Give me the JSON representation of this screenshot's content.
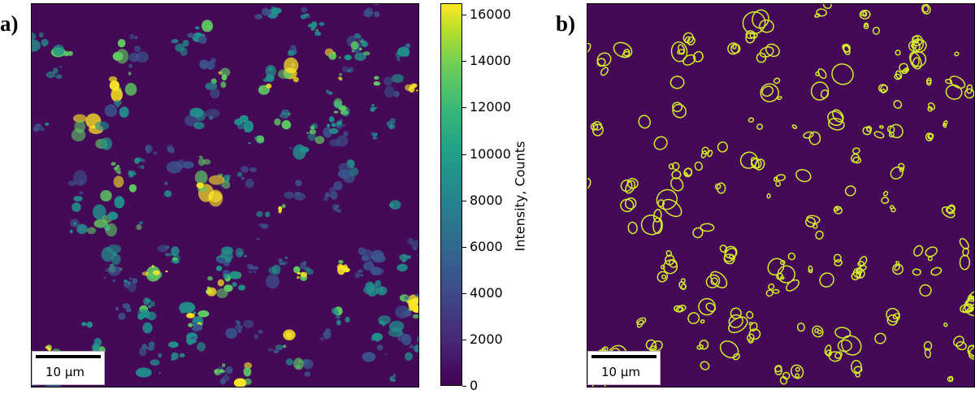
{
  "panels": [
    {
      "letter": "a)",
      "scale_label": "10 µm",
      "style": "heatmap"
    },
    {
      "letter": "b)",
      "scale_label": "10 µm",
      "style": "contour"
    }
  ],
  "colorbar": {
    "label": "Intensity, Counts",
    "min": 0,
    "max": 16500,
    "ticks": [
      "0",
      "2000",
      "4000",
      "6000",
      "8000",
      "10000",
      "12000",
      "14000",
      "16000"
    ]
  },
  "colors": {
    "background": "#440a57",
    "contour": "#d4ec2b",
    "particle_low": "#3b528b",
    "particle_mid": "#21918c",
    "particle_high": "#5ec962",
    "particle_peak": "#fde725"
  }
}
